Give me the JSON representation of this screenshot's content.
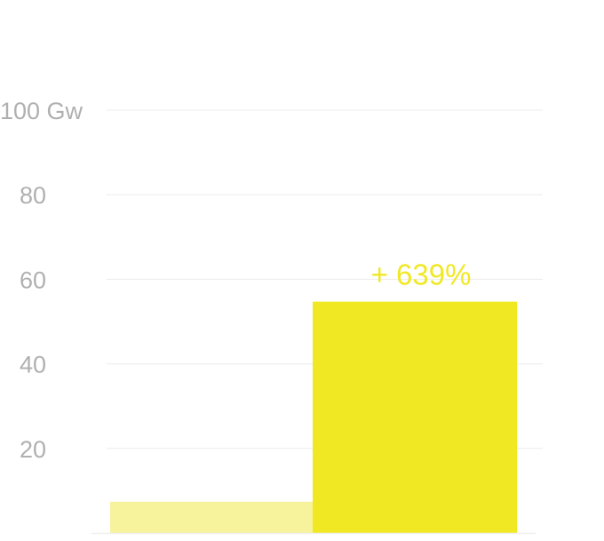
{
  "chart_data": {
    "type": "bar",
    "categories": [
      "",
      ""
    ],
    "values": [
      7.4,
      54.7
    ],
    "ylim": [
      0,
      100
    ],
    "yticks": [
      20,
      40,
      60,
      80,
      100
    ],
    "ytick_labels": [
      "20",
      "40",
      "60",
      "80",
      "100 Gw"
    ],
    "grid": true,
    "annotation": "+ 639%",
    "colors": {
      "bar_1": "#f7f29c",
      "bar_2": "#f0e823",
      "annotation": "#f0e823",
      "grid": "#ececec",
      "tick_text": "#b0b0b0"
    }
  }
}
